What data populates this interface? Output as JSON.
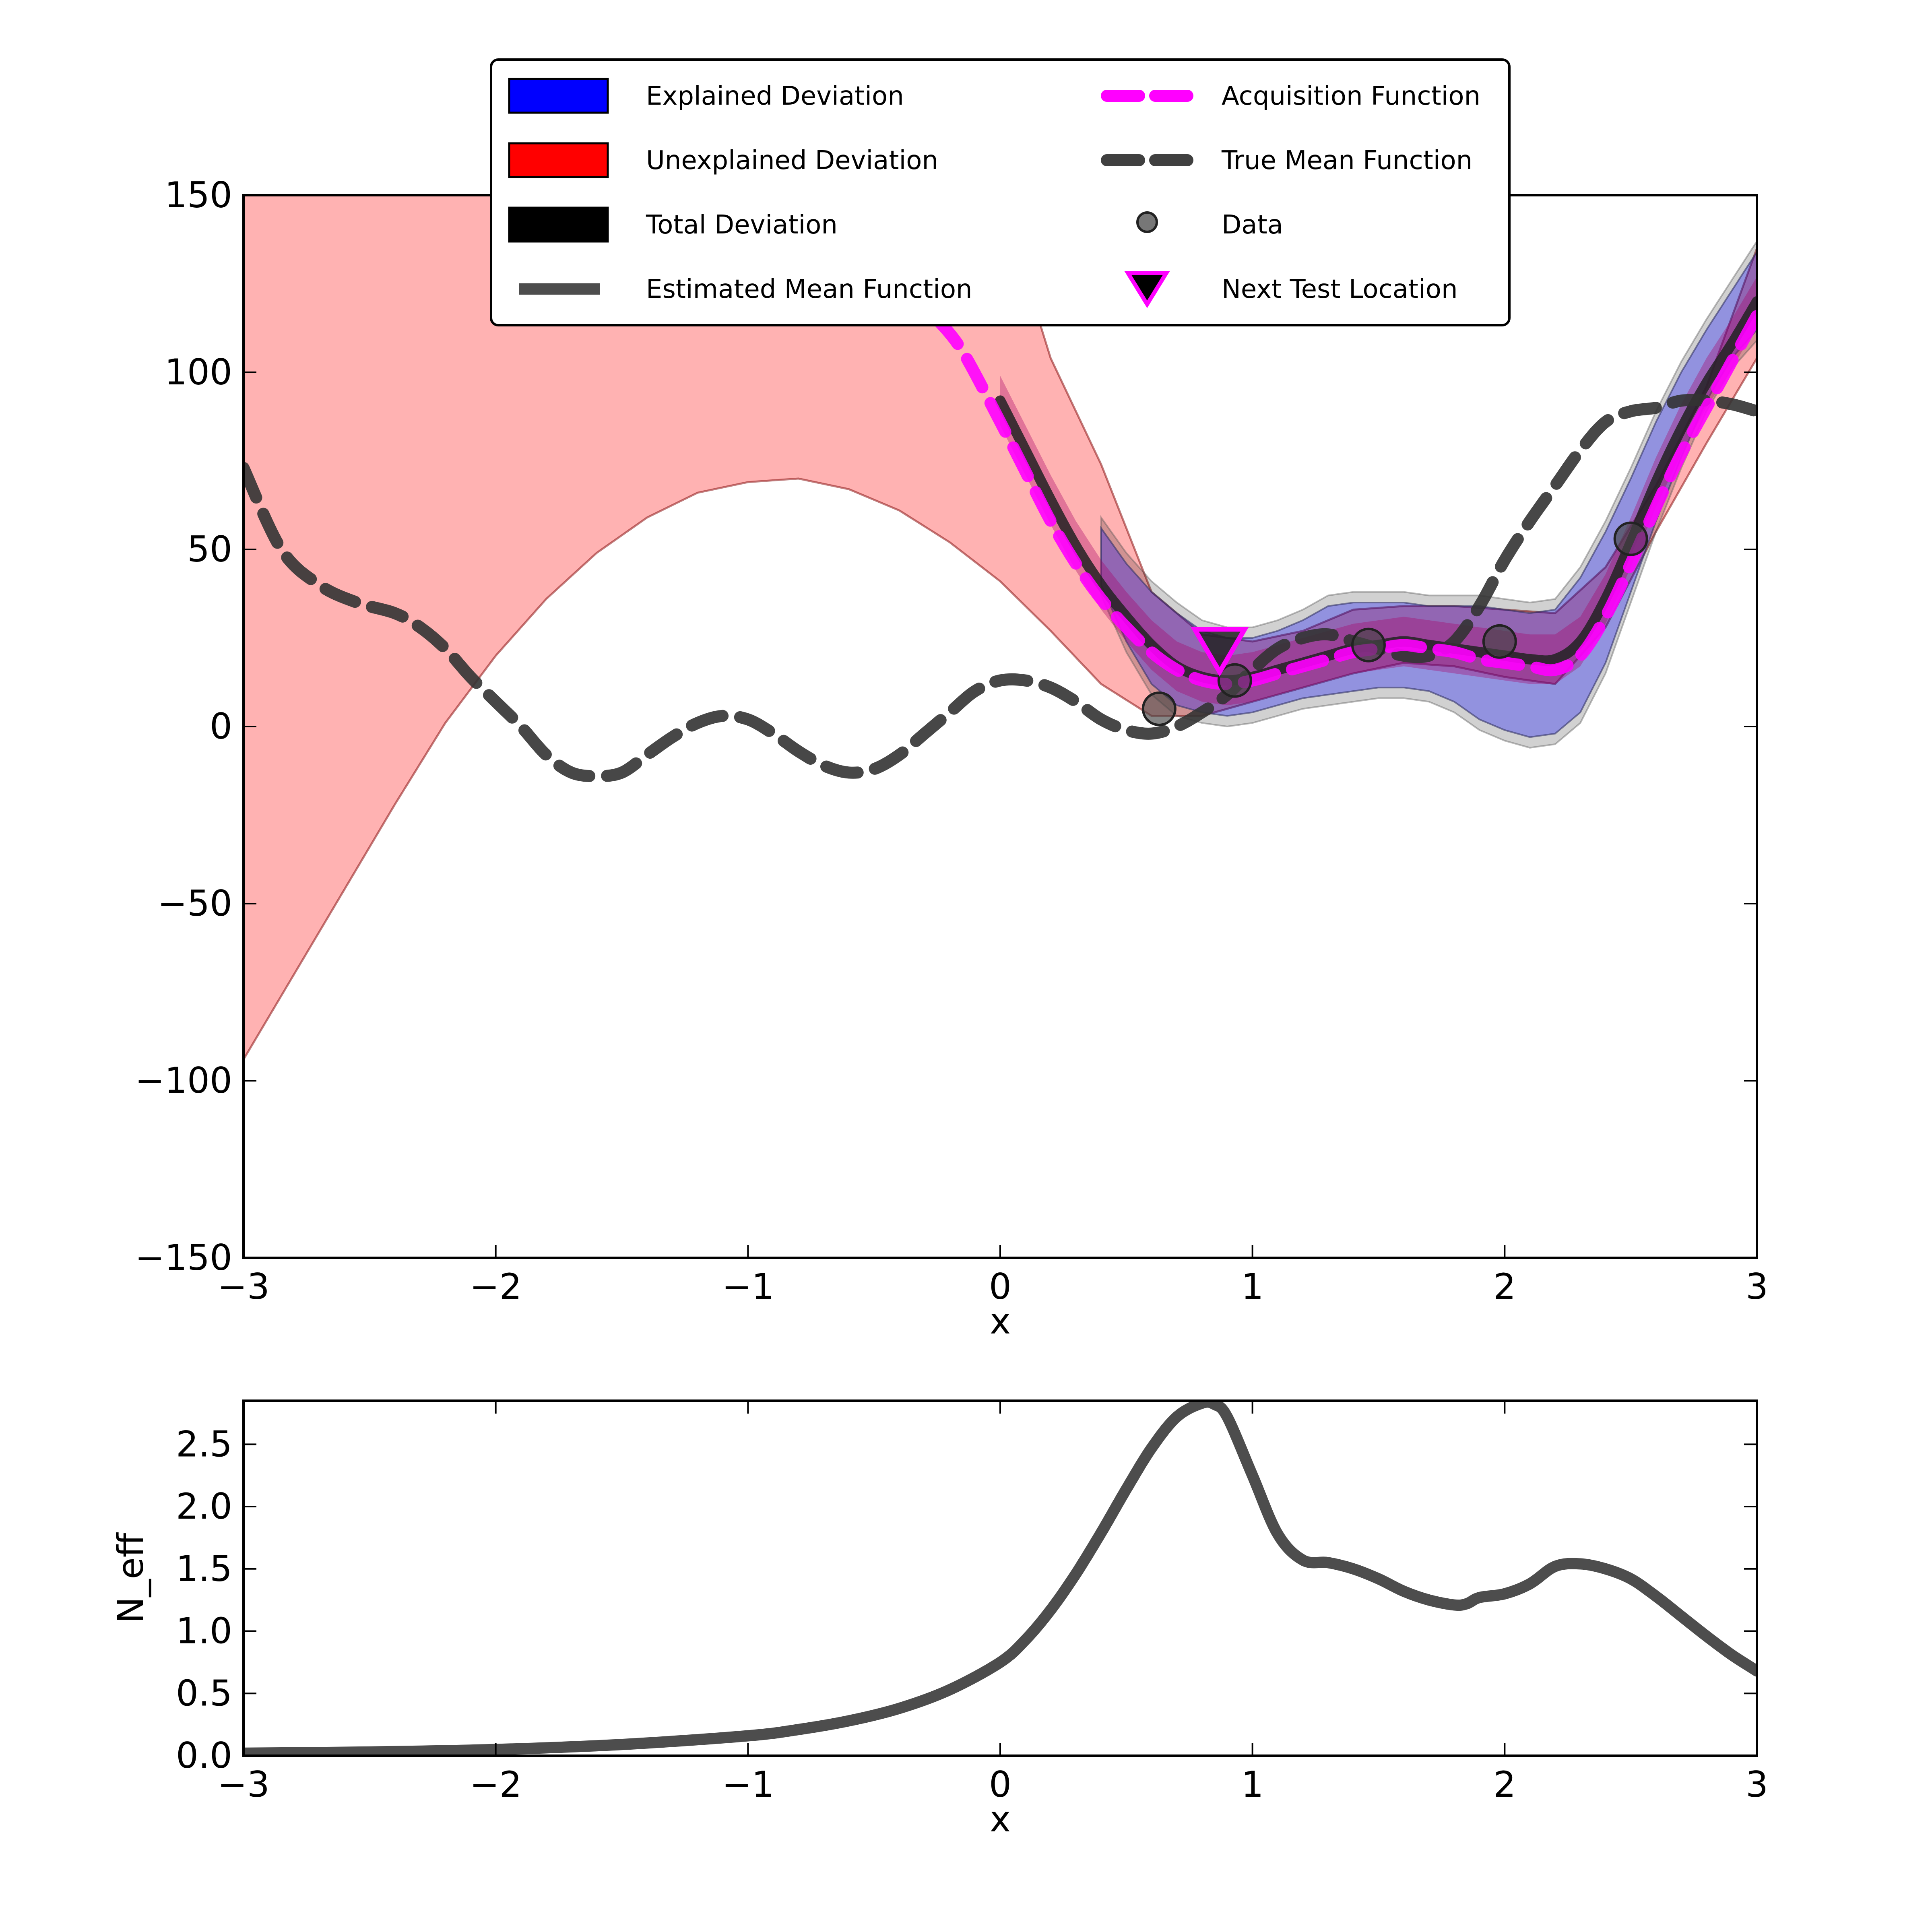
{
  "chart_data": [
    {
      "type": "line",
      "xlabel": "x",
      "ylabel": "",
      "xlim": [
        -3,
        3
      ],
      "ylim": [
        -150,
        150
      ],
      "xticks": [
        -3,
        -2,
        -1,
        0,
        1,
        2,
        3
      ],
      "yticks": [
        -150,
        -100,
        -50,
        0,
        50,
        100,
        150
      ],
      "xtick_labels": [
        "−3",
        "−2",
        "−1",
        "0",
        "1",
        "2",
        "3"
      ],
      "ytick_labels": [
        "−150",
        "−100",
        "−50",
        "0",
        "50",
        "100",
        "150"
      ],
      "grid": false,
      "legend_placement": "upper-center",
      "legend": [
        {
          "label": "Explained Deviation",
          "kind": "patch",
          "color": "#0000ff"
        },
        {
          "label": "Unexplained Deviation",
          "kind": "patch",
          "color": "#ff0000"
        },
        {
          "label": "Total Deviation",
          "kind": "patch",
          "color": "#000000"
        },
        {
          "label": "Estimated Mean Function",
          "kind": "line",
          "color": "#4d4d4d"
        },
        {
          "label": "Acquisition Function",
          "kind": "dashed",
          "color": "#ff00ff"
        },
        {
          "label": "True Mean Function",
          "kind": "dashed",
          "color": "#404040"
        },
        {
          "label": "Data",
          "kind": "marker-circle",
          "color": "#555555"
        },
        {
          "label": "Next Test Location",
          "kind": "marker-triangle",
          "color": "#000000",
          "edge": "#ff00ff"
        }
      ],
      "true_mean": {
        "x": [
          -3.0,
          -2.85,
          -2.7,
          -2.55,
          -2.4,
          -2.3,
          -2.2,
          -2.1,
          -2.0,
          -1.9,
          -1.8,
          -1.7,
          -1.6,
          -1.5,
          -1.4,
          -1.3,
          -1.2,
          -1.1,
          -1.0,
          -0.9,
          -0.8,
          -0.7,
          -0.6,
          -0.5,
          -0.4,
          -0.3,
          -0.2,
          -0.1,
          0.0,
          0.1,
          0.2,
          0.3,
          0.4,
          0.5,
          0.6,
          0.7,
          0.8,
          0.9,
          1.0,
          1.1,
          1.2,
          1.3,
          1.4,
          1.5,
          1.6,
          1.7,
          1.8,
          1.9,
          2.0,
          2.1,
          2.2,
          2.3,
          2.4,
          2.5,
          2.6,
          2.7,
          2.8,
          2.9,
          3.0
        ],
        "y": [
          73,
          50,
          40,
          35,
          32,
          28,
          22,
          14,
          7,
          0,
          -8,
          -13,
          -14,
          -13,
          -8,
          -3,
          1,
          3,
          2,
          -2,
          -7,
          -11,
          -13,
          -12,
          -8,
          -2,
          4,
          10,
          13,
          13,
          11,
          7,
          2,
          -1,
          -2,
          0,
          4,
          9,
          16,
          22,
          25,
          26,
          24,
          22,
          20,
          20,
          24,
          34,
          47,
          58,
          68,
          78,
          86,
          89,
          90,
          92,
          92,
          91,
          89
        ]
      },
      "estimated_mean": {
        "x": [
          0.0,
          0.1,
          0.2,
          0.3,
          0.4,
          0.5,
          0.6,
          0.7,
          0.8,
          0.9,
          1.0,
          1.1,
          1.2,
          1.3,
          1.4,
          1.5,
          1.6,
          1.7,
          1.8,
          1.9,
          2.0,
          2.1,
          2.2,
          2.3,
          2.4,
          2.5,
          2.6,
          2.7,
          2.8,
          2.9,
          3.0
        ],
        "y": [
          92,
          78,
          64,
          51,
          40,
          31,
          23,
          17,
          14,
          13,
          14,
          16,
          18,
          20,
          22,
          23,
          24,
          23,
          22,
          21,
          20,
          19,
          19,
          24,
          36,
          52,
          69,
          84,
          97,
          108,
          120
        ]
      },
      "acquisition": {
        "x": [
          -0.25,
          -0.15,
          0.0,
          0.1,
          0.2,
          0.3,
          0.4,
          0.5,
          0.6,
          0.7,
          0.8,
          0.9,
          1.0,
          1.1,
          1.2,
          1.3,
          1.4,
          1.5,
          1.6,
          1.7,
          1.8,
          1.9,
          2.0,
          2.1,
          2.2,
          2.3,
          2.4,
          2.5,
          2.6,
          2.7,
          2.8,
          2.9,
          3.0
        ],
        "y": [
          115,
          106,
          86,
          72,
          58,
          46,
          36,
          28,
          21,
          16,
          13,
          12,
          13,
          15,
          17,
          19,
          21,
          22,
          23,
          22,
          21,
          19,
          18,
          17,
          16,
          20,
          31,
          46,
          62,
          77,
          90,
          103,
          116
        ]
      },
      "unexplained_band": {
        "x": [
          -3.0,
          -2.8,
          -2.6,
          -2.4,
          -2.2,
          -2.0,
          -1.8,
          -1.6,
          -1.4,
          -1.2,
          -1.0,
          -0.8,
          -0.6,
          -0.4,
          -0.2,
          0.0,
          0.2,
          0.4,
          0.6,
          0.8,
          1.0,
          1.2,
          1.4,
          1.6,
          1.8,
          2.0,
          2.2,
          2.4,
          2.6,
          2.8,
          3.0
        ],
        "lower": [
          -94,
          -70,
          -46,
          -22,
          1,
          20,
          36,
          49,
          59,
          66,
          69,
          70,
          67,
          61,
          52,
          41,
          27,
          12,
          3,
          3,
          7,
          11,
          15,
          18,
          17,
          14,
          12,
          28,
          55,
          80,
          104
        ],
        "upper": [
          150,
          150,
          150,
          150,
          150,
          150,
          150,
          150,
          150,
          150,
          150,
          150,
          150,
          150,
          150,
          150,
          104,
          74,
          38,
          26,
          24,
          27,
          33,
          34,
          34,
          33,
          32,
          45,
          68,
          96,
          135
        ]
      },
      "explained_band": {
        "x": [
          0.4,
          0.5,
          0.6,
          0.7,
          0.8,
          0.9,
          1.0,
          1.1,
          1.2,
          1.3,
          1.4,
          1.5,
          1.6,
          1.7,
          1.8,
          1.9,
          2.0,
          2.1,
          2.2,
          2.3,
          2.4,
          2.5,
          2.6,
          2.7,
          2.8,
          2.9,
          3.0
        ],
        "lower": [
          40,
          24,
          12,
          6,
          4,
          3,
          4,
          6,
          8,
          9,
          10,
          11,
          11,
          10,
          7,
          2,
          -1,
          -3,
          -2,
          4,
          18,
          38,
          58,
          76,
          92,
          104,
          112
        ],
        "upper": [
          56,
          46,
          38,
          32,
          27,
          25,
          25,
          27,
          30,
          34,
          35,
          35,
          35,
          34,
          34,
          34,
          33,
          32,
          33,
          42,
          55,
          70,
          86,
          100,
          112,
          123,
          134
        ]
      },
      "data_points": {
        "x": [
          0.63,
          0.93,
          1.46,
          1.98,
          2.5
        ],
        "y": [
          5,
          13,
          23,
          24,
          53
        ]
      },
      "next_test_location": {
        "x": 0.87,
        "y": 22
      }
    },
    {
      "type": "line",
      "xlabel": "x",
      "ylabel": "N_eff",
      "xlim": [
        -3,
        3
      ],
      "ylim": [
        0,
        2.85
      ],
      "xticks": [
        -3,
        -2,
        -1,
        0,
        1,
        2,
        3
      ],
      "yticks": [
        0.0,
        0.5,
        1.0,
        1.5,
        2.0,
        2.5
      ],
      "xtick_labels": [
        "−3",
        "−2",
        "−1",
        "0",
        "1",
        "2",
        "3"
      ],
      "ytick_labels": [
        "0.0",
        "0.5",
        "1.0",
        "1.5",
        "2.0",
        "2.5"
      ],
      "grid": false,
      "series": [
        {
          "x": [
            -3.0,
            -2.5,
            -2.0,
            -1.5,
            -1.0,
            -0.8,
            -0.6,
            -0.4,
            -0.2,
            0.0,
            0.1,
            0.2,
            0.3,
            0.4,
            0.5,
            0.6,
            0.7,
            0.8,
            0.85,
            0.9,
            1.0,
            1.1,
            1.2,
            1.3,
            1.4,
            1.5,
            1.6,
            1.7,
            1.8,
            1.85,
            1.9,
            2.0,
            2.1,
            2.2,
            2.3,
            2.4,
            2.5,
            2.6,
            2.7,
            2.8,
            2.9,
            3.0
          ],
          "y": [
            0.02,
            0.03,
            0.05,
            0.09,
            0.16,
            0.21,
            0.28,
            0.38,
            0.53,
            0.75,
            0.93,
            1.17,
            1.46,
            1.79,
            2.14,
            2.47,
            2.72,
            2.83,
            2.82,
            2.72,
            2.25,
            1.78,
            1.57,
            1.55,
            1.5,
            1.42,
            1.32,
            1.25,
            1.21,
            1.22,
            1.27,
            1.3,
            1.38,
            1.52,
            1.54,
            1.5,
            1.42,
            1.28,
            1.12,
            0.96,
            0.81,
            0.68
          ]
        }
      ]
    }
  ]
}
